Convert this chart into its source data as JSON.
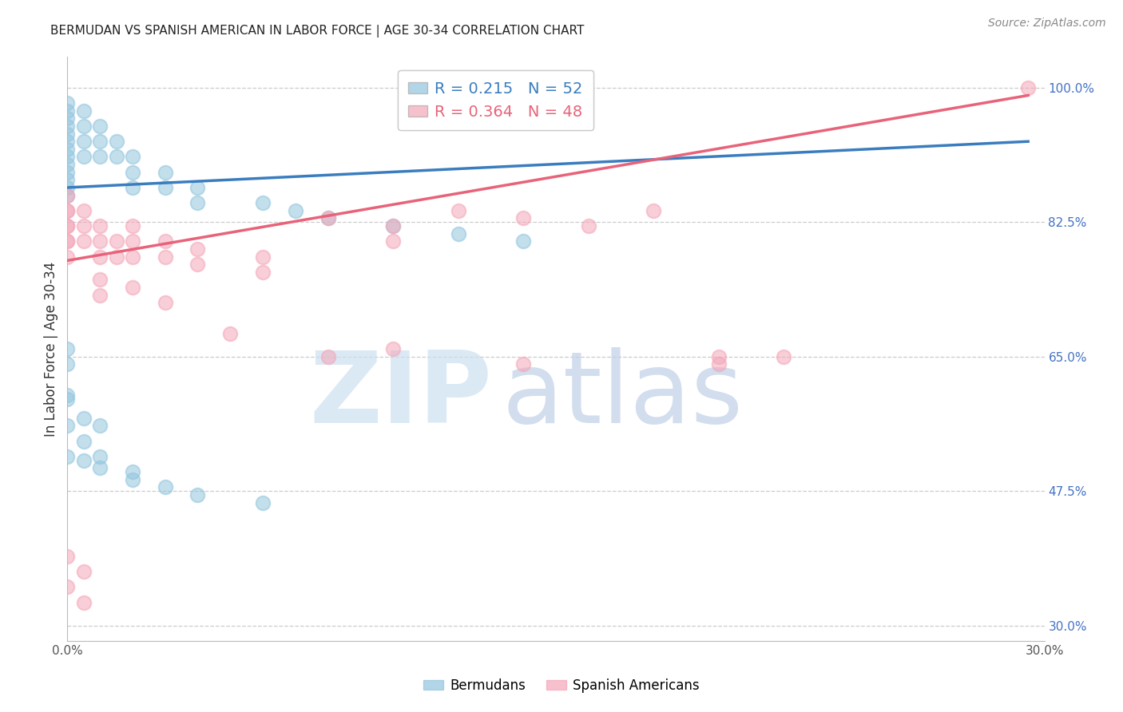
{
  "title": "BERMUDAN VS SPANISH AMERICAN IN LABOR FORCE | AGE 30-34 CORRELATION CHART",
  "source": "Source: ZipAtlas.com",
  "ylabel": "In Labor Force | Age 30-34",
  "xlim": [
    0.0,
    0.3
  ],
  "ylim": [
    0.28,
    1.04
  ],
  "xticks": [
    0.0,
    0.05,
    0.1,
    0.15,
    0.2,
    0.25,
    0.3
  ],
  "xticklabels": [
    "0.0%",
    "",
    "",
    "",
    "",
    "",
    "30.0%"
  ],
  "yticks": [
    1.0,
    0.825,
    0.65,
    0.475,
    0.3
  ],
  "yticklabels": [
    "100.0%",
    "82.5%",
    "65.0%",
    "47.5%",
    "30.0%"
  ],
  "blue_color": "#92c5de",
  "pink_color": "#f4a6b8",
  "blue_line_color": "#3a7dbf",
  "pink_line_color": "#e8637a",
  "legend_blue_label": "Bermudans",
  "legend_pink_label": "Spanish Americans",
  "R_blue": 0.215,
  "N_blue": 52,
  "R_pink": 0.364,
  "N_pink": 48,
  "blue_x": [
    0.0,
    0.0,
    0.0,
    0.0,
    0.0,
    0.0,
    0.0,
    0.0,
    0.0,
    0.0,
    0.0,
    0.0,
    0.0,
    0.005,
    0.005,
    0.005,
    0.005,
    0.01,
    0.01,
    0.01,
    0.015,
    0.015,
    0.02,
    0.02,
    0.02,
    0.03,
    0.03,
    0.04,
    0.04,
    0.06,
    0.07,
    0.08,
    0.1,
    0.12,
    0.14,
    0.0,
    0.0,
    0.0,
    0.005,
    0.005,
    0.01,
    0.01,
    0.02,
    0.03,
    0.04,
    0.06,
    0.0,
    0.0,
    0.0,
    0.005,
    0.01,
    0.02
  ],
  "blue_y": [
    0.98,
    0.97,
    0.96,
    0.95,
    0.94,
    0.93,
    0.92,
    0.91,
    0.9,
    0.89,
    0.88,
    0.87,
    0.86,
    0.97,
    0.95,
    0.93,
    0.91,
    0.95,
    0.93,
    0.91,
    0.93,
    0.91,
    0.91,
    0.89,
    0.87,
    0.89,
    0.87,
    0.87,
    0.85,
    0.85,
    0.84,
    0.83,
    0.82,
    0.81,
    0.8,
    0.66,
    0.64,
    0.6,
    0.57,
    0.54,
    0.56,
    0.52,
    0.5,
    0.48,
    0.47,
    0.46,
    0.595,
    0.56,
    0.52,
    0.515,
    0.505,
    0.49
  ],
  "pink_x": [
    0.0,
    0.0,
    0.0,
    0.0,
    0.0,
    0.0,
    0.0,
    0.0,
    0.005,
    0.005,
    0.005,
    0.01,
    0.01,
    0.01,
    0.015,
    0.015,
    0.02,
    0.02,
    0.02,
    0.03,
    0.03,
    0.04,
    0.04,
    0.06,
    0.06,
    0.08,
    0.1,
    0.1,
    0.12,
    0.14,
    0.16,
    0.18,
    0.2,
    0.22,
    0.0,
    0.0,
    0.005,
    0.005,
    0.01,
    0.01,
    0.02,
    0.03,
    0.05,
    0.08,
    0.1,
    0.14,
    0.2,
    0.295
  ],
  "pink_y": [
    0.86,
    0.84,
    0.82,
    0.8,
    0.78,
    0.84,
    0.82,
    0.8,
    0.84,
    0.82,
    0.8,
    0.82,
    0.8,
    0.78,
    0.8,
    0.78,
    0.82,
    0.8,
    0.78,
    0.8,
    0.78,
    0.79,
    0.77,
    0.78,
    0.76,
    0.83,
    0.82,
    0.8,
    0.84,
    0.83,
    0.82,
    0.84,
    0.65,
    0.65,
    0.39,
    0.35,
    0.37,
    0.33,
    0.75,
    0.73,
    0.74,
    0.72,
    0.68,
    0.65,
    0.66,
    0.64,
    0.64,
    1.0
  ],
  "blue_trend_x": [
    0.0,
    0.295
  ],
  "blue_trend_y": [
    0.87,
    0.93
  ],
  "pink_trend_x": [
    0.0,
    0.295
  ],
  "pink_trend_y": [
    0.775,
    0.99
  ],
  "title_fontsize": 11,
  "source_fontsize": 10,
  "tick_fontsize": 11,
  "ylabel_fontsize": 12,
  "ytick_color": "#4472c4",
  "xtick_color": "#555555"
}
